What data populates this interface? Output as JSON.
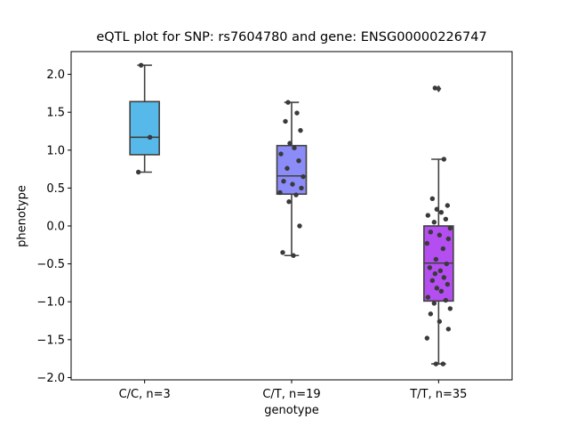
{
  "chart_data": {
    "type": "box",
    "title": "eQTL plot for SNP: rs7604780 and gene: ENSG00000226747",
    "xlabel": "genotype",
    "ylabel": "phenotype",
    "ylim": [
      -2.03,
      2.3
    ],
    "yticks": [
      -2.0,
      -1.5,
      -1.0,
      -0.5,
      0.0,
      0.5,
      1.0,
      1.5,
      2.0
    ],
    "ytick_labels": [
      "−2.0",
      "−1.5",
      "−1.0",
      "−0.5",
      "0.0",
      "0.5",
      "1.0",
      "1.5",
      "2.0"
    ],
    "grid": false,
    "categories": [
      "C/C, n=3",
      "C/T, n=19",
      "T/T, n=35"
    ],
    "boxes": [
      {
        "category": "C/C, n=3",
        "color": "#56b9ea",
        "q1": 0.94,
        "median": 1.17,
        "q3": 1.64,
        "whisker_low": 0.71,
        "whisker_high": 2.12,
        "outliers": []
      },
      {
        "category": "C/T, n=19",
        "color": "#8c8cf8",
        "q1": 0.42,
        "median": 0.66,
        "q3": 1.06,
        "whisker_low": -0.39,
        "whisker_high": 1.63,
        "outliers": []
      },
      {
        "category": "T/T, n=35",
        "color": "#b44ef0",
        "q1": -0.99,
        "median": -0.49,
        "q3": 0.0,
        "whisker_low": -1.82,
        "whisker_high": 0.88,
        "outliers": [
          1.81
        ]
      }
    ],
    "points": [
      {
        "category": "C/C, n=3",
        "y": [
          2.12,
          1.17,
          0.71
        ]
      },
      {
        "category": "C/T, n=19",
        "y": [
          1.63,
          1.49,
          1.38,
          1.26,
          1.09,
          1.03,
          0.95,
          0.86,
          0.76,
          0.65,
          0.59,
          0.55,
          0.5,
          0.44,
          0.41,
          0.32,
          0.0,
          -0.35,
          -0.39
        ]
      },
      {
        "category": "T/T, n=35",
        "y": [
          1.82,
          0.88,
          0.36,
          0.27,
          0.22,
          0.18,
          0.14,
          0.09,
          0.05,
          -0.03,
          -0.08,
          -0.12,
          -0.17,
          -0.23,
          -0.3,
          -0.44,
          -0.5,
          -0.55,
          -0.59,
          -0.63,
          -0.68,
          -0.72,
          -0.77,
          -0.82,
          -0.86,
          -0.94,
          -0.98,
          -1.02,
          -1.09,
          -1.16,
          -1.26,
          -1.36,
          -1.48,
          -1.82,
          -1.82
        ]
      }
    ]
  }
}
